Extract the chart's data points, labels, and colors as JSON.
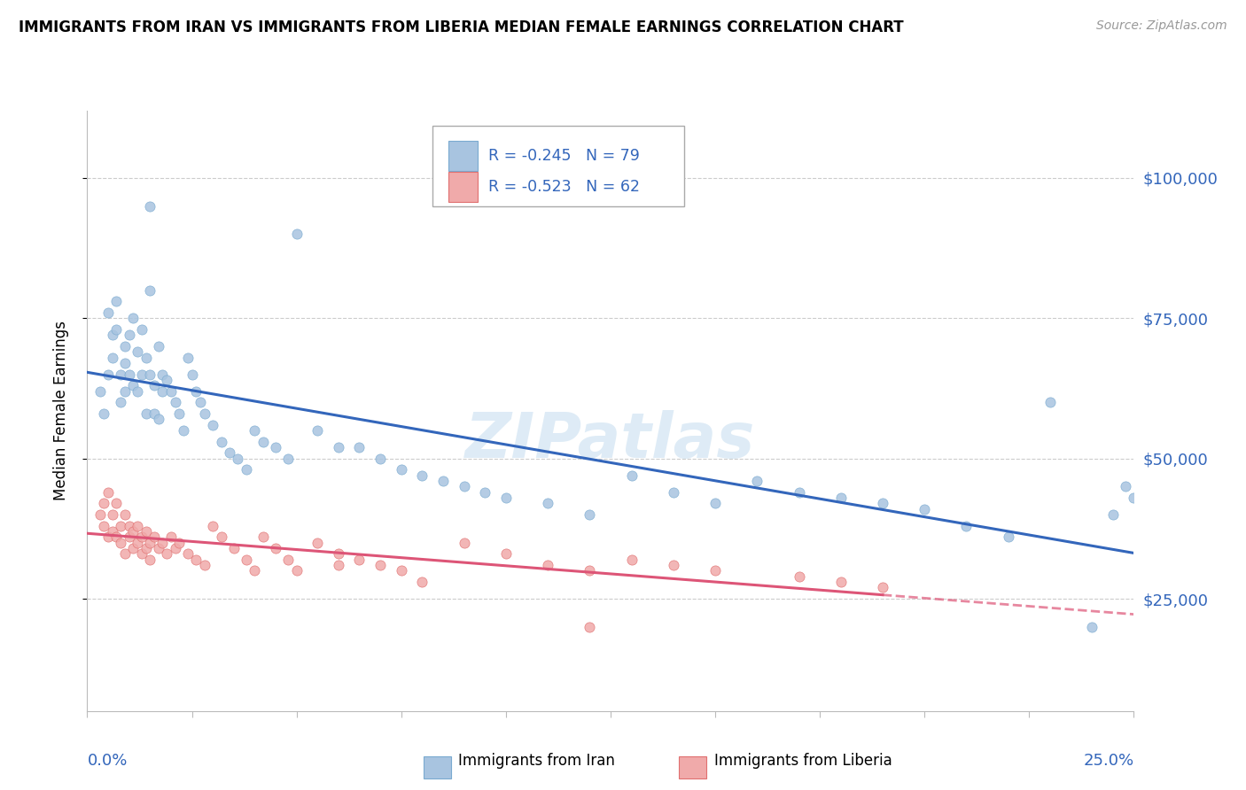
{
  "title": "IMMIGRANTS FROM IRAN VS IMMIGRANTS FROM LIBERIA MEDIAN FEMALE EARNINGS CORRELATION CHART",
  "source": "Source: ZipAtlas.com",
  "ylabel": "Median Female Earnings",
  "ytick_labels": [
    "$25,000",
    "$50,000",
    "$75,000",
    "$100,000"
  ],
  "ytick_values": [
    25000,
    50000,
    75000,
    100000
  ],
  "ymax": 112000,
  "ymin": 5000,
  "xmin": 0.0,
  "xmax": 0.25,
  "iran_R": -0.245,
  "iran_N": 79,
  "liberia_R": -0.523,
  "liberia_N": 62,
  "iran_color": "#A8C4E0",
  "iran_edge_color": "#7AAAD0",
  "iran_line_color": "#3366BB",
  "liberia_color": "#F0AAAA",
  "liberia_edge_color": "#E07070",
  "liberia_line_color": "#DD5577",
  "axis_label_color": "#3366BB",
  "grid_color": "#cccccc",
  "legend_text_color": "#3366BB",
  "iran_scatter_x": [
    0.003,
    0.004,
    0.005,
    0.005,
    0.006,
    0.006,
    0.007,
    0.007,
    0.008,
    0.008,
    0.009,
    0.009,
    0.009,
    0.01,
    0.01,
    0.011,
    0.011,
    0.012,
    0.012,
    0.013,
    0.013,
    0.014,
    0.014,
    0.015,
    0.015,
    0.016,
    0.016,
    0.017,
    0.017,
    0.018,
    0.018,
    0.019,
    0.02,
    0.021,
    0.022,
    0.023,
    0.024,
    0.025,
    0.026,
    0.027,
    0.028,
    0.03,
    0.032,
    0.034,
    0.036,
    0.038,
    0.04,
    0.042,
    0.045,
    0.048,
    0.05,
    0.055,
    0.06,
    0.065,
    0.07,
    0.075,
    0.08,
    0.085,
    0.09,
    0.095,
    0.1,
    0.11,
    0.12,
    0.13,
    0.14,
    0.15,
    0.16,
    0.17,
    0.18,
    0.19,
    0.2,
    0.21,
    0.22,
    0.23,
    0.24,
    0.245,
    0.248,
    0.25,
    0.015
  ],
  "iran_scatter_y": [
    62000,
    58000,
    65000,
    76000,
    72000,
    68000,
    78000,
    73000,
    65000,
    60000,
    70000,
    67000,
    62000,
    72000,
    65000,
    75000,
    63000,
    69000,
    62000,
    73000,
    65000,
    68000,
    58000,
    80000,
    65000,
    63000,
    58000,
    70000,
    57000,
    65000,
    62000,
    64000,
    62000,
    60000,
    58000,
    55000,
    68000,
    65000,
    62000,
    60000,
    58000,
    56000,
    53000,
    51000,
    50000,
    48000,
    55000,
    53000,
    52000,
    50000,
    90000,
    55000,
    52000,
    52000,
    50000,
    48000,
    47000,
    46000,
    45000,
    44000,
    43000,
    42000,
    40000,
    47000,
    44000,
    42000,
    46000,
    44000,
    43000,
    42000,
    41000,
    38000,
    36000,
    60000,
    20000,
    40000,
    45000,
    43000,
    95000
  ],
  "liberia_scatter_x": [
    0.003,
    0.004,
    0.004,
    0.005,
    0.005,
    0.006,
    0.006,
    0.007,
    0.007,
    0.008,
    0.008,
    0.009,
    0.009,
    0.01,
    0.01,
    0.011,
    0.011,
    0.012,
    0.012,
    0.013,
    0.013,
    0.014,
    0.014,
    0.015,
    0.015,
    0.016,
    0.017,
    0.018,
    0.019,
    0.02,
    0.021,
    0.022,
    0.024,
    0.026,
    0.028,
    0.03,
    0.032,
    0.035,
    0.038,
    0.04,
    0.042,
    0.045,
    0.048,
    0.05,
    0.055,
    0.06,
    0.065,
    0.07,
    0.075,
    0.08,
    0.09,
    0.1,
    0.11,
    0.12,
    0.13,
    0.14,
    0.15,
    0.06,
    0.17,
    0.18,
    0.19,
    0.12
  ],
  "liberia_scatter_y": [
    40000,
    42000,
    38000,
    44000,
    36000,
    40000,
    37000,
    42000,
    36000,
    38000,
    35000,
    40000,
    33000,
    38000,
    36000,
    37000,
    34000,
    38000,
    35000,
    36000,
    33000,
    37000,
    34000,
    35000,
    32000,
    36000,
    34000,
    35000,
    33000,
    36000,
    34000,
    35000,
    33000,
    32000,
    31000,
    38000,
    36000,
    34000,
    32000,
    30000,
    36000,
    34000,
    32000,
    30000,
    35000,
    33000,
    32000,
    31000,
    30000,
    28000,
    35000,
    33000,
    31000,
    30000,
    32000,
    31000,
    30000,
    31000,
    29000,
    28000,
    27000,
    20000
  ]
}
